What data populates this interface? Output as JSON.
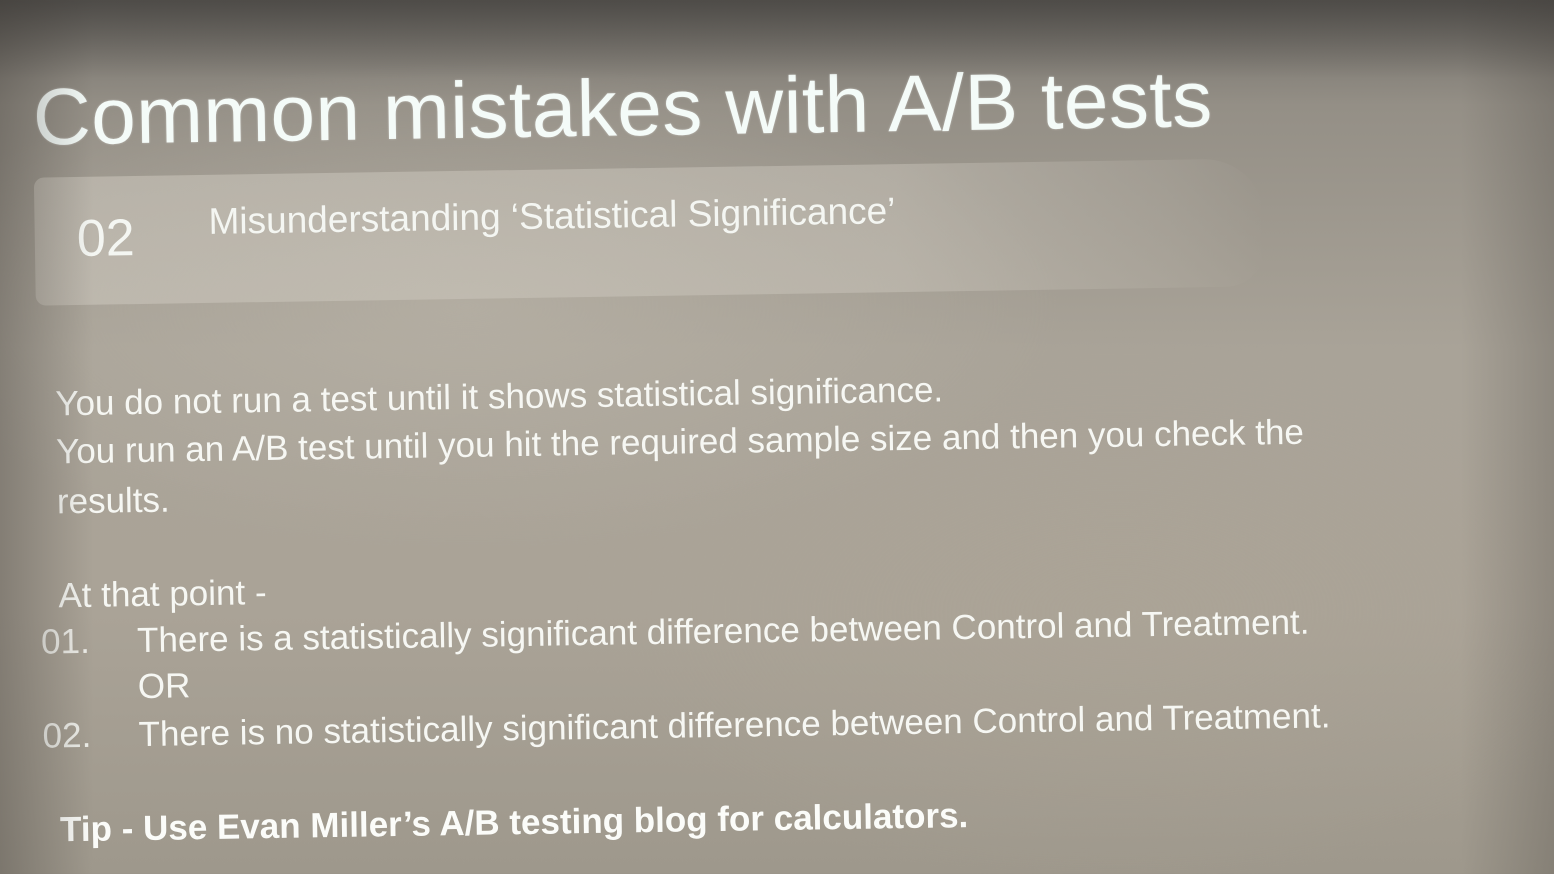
{
  "slide": {
    "title": "Common mistakes with A/B tests",
    "section": {
      "number": "02",
      "title": "Misunderstanding ‘Statistical Significance’"
    },
    "body": {
      "line1": "You do not run a test until it shows statistical significance.",
      "line2": "You run an A/B test until you hit the required sample size and then you check the",
      "line3": "results.",
      "intro": "At that point -",
      "items": [
        {
          "num": "01.",
          "text": "There is a statistically significant difference between Control and Treatment."
        },
        {
          "num": "02.",
          "text": "There is no statistically significant difference between Control and Treatment."
        }
      ],
      "or_label": "OR"
    },
    "tip": "Tip - Use Evan Miller’s A/B testing blog for calculators."
  }
}
